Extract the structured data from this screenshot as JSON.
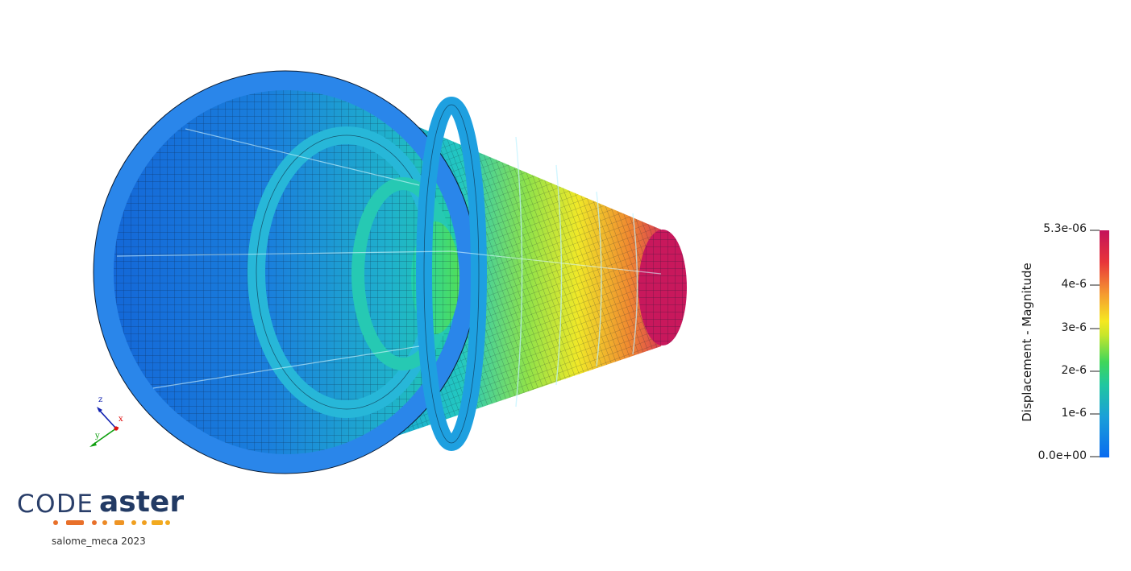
{
  "colorbar": {
    "title": "Displacement - Magnitude",
    "ticks": [
      {
        "label": "5.3e-06",
        "value": 5.3e-06
      },
      {
        "label": "4e-6",
        "value": 4e-06
      },
      {
        "label": "3e-6",
        "value": 3e-06
      },
      {
        "label": "2e-6",
        "value": 2e-06
      },
      {
        "label": "1e-6",
        "value": 1e-06
      },
      {
        "label": "0.0e+00",
        "value": 0
      }
    ],
    "range": [
      0,
      5.3e-06
    ],
    "colormap": [
      "#0a6bf0",
      "#1aa0d8",
      "#20c7a0",
      "#3fd65a",
      "#c8e62a",
      "#f5e820",
      "#f59a30",
      "#e8353a",
      "#c4125a"
    ]
  },
  "axes_triad": {
    "x_label": "x",
    "y_label": "y",
    "z_label": "z",
    "x_color": "#e01010",
    "y_color": "#10a010",
    "z_color": "#1020b0"
  },
  "logo": {
    "word1": "CODE",
    "word2": "aster",
    "subtitle": "salome_meca 2023",
    "dash_colors": [
      "#e8702a",
      "#f0a020"
    ]
  }
}
